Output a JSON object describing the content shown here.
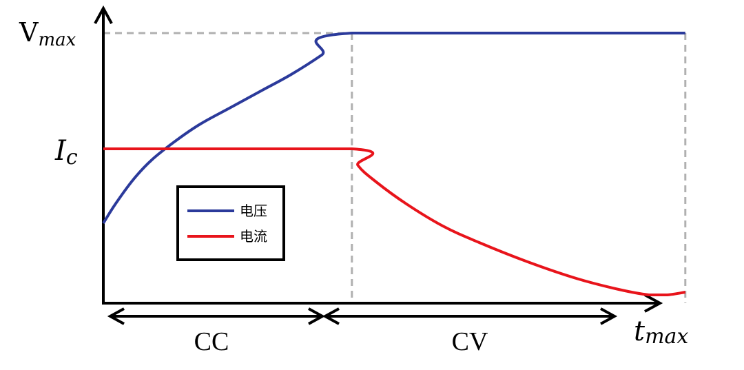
{
  "chart_data": {
    "type": "line",
    "title": "",
    "y_tick_labels": {
      "vmax": {
        "main": "V",
        "sub": "max"
      },
      "ic": {
        "main": "I",
        "sub": "c"
      }
    },
    "x_axis_label": {
      "main": "t",
      "sub": "max"
    },
    "phases": [
      {
        "label": "CC",
        "x_range": [
          0,
          0.41
        ]
      },
      {
        "label": "CV",
        "x_range": [
          0.41,
          0.96
        ]
      }
    ],
    "xlim": [
      0,
      1
    ],
    "ylim": [
      0,
      1
    ],
    "series": [
      {
        "name": "电压",
        "color": "#2b3a9b",
        "x": [
          0,
          0.02,
          0.05,
          0.08,
          0.12,
          0.16,
          0.21,
          0.26,
          0.31,
          0.36,
          0.41,
          0.96
        ],
        "y": [
          0.29,
          0.36,
          0.45,
          0.52,
          0.59,
          0.65,
          0.71,
          0.77,
          0.83,
          0.9,
          0.98,
          0.98
        ]
      },
      {
        "name": "电流",
        "color": "#e8141b",
        "x": [
          0,
          0.41,
          0.42,
          0.45,
          0.5,
          0.56,
          0.62,
          0.7,
          0.78,
          0.85,
          0.9,
          0.93,
          0.96
        ],
        "y": [
          0.56,
          0.56,
          0.5,
          0.44,
          0.36,
          0.28,
          0.22,
          0.15,
          0.09,
          0.05,
          0.03,
          0.03,
          0.04
        ]
      }
    ],
    "grid": false,
    "legend_position": "lower-left",
    "reference_lines": "dashed grey at V_max level and at CC/CV boundary and t_max"
  }
}
